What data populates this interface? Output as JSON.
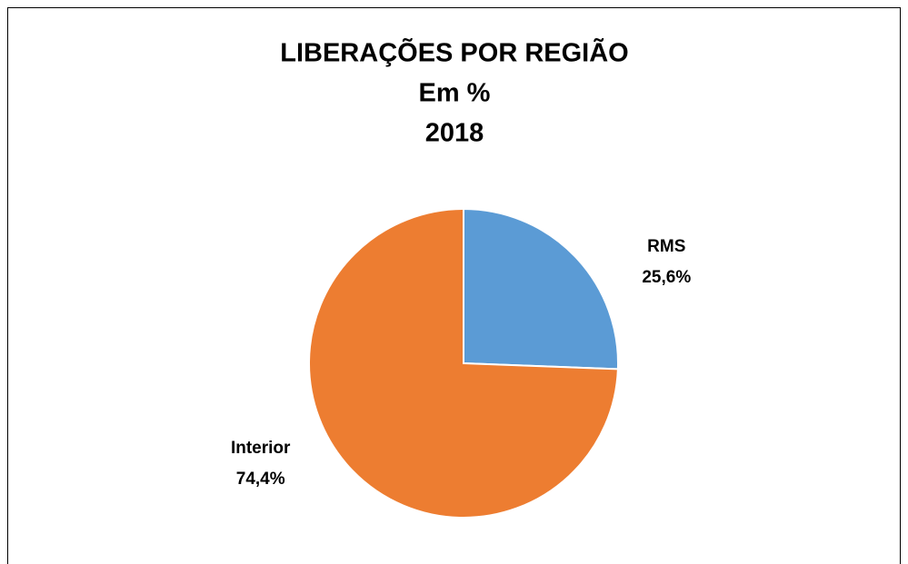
{
  "chart_data": {
    "type": "pie",
    "title_lines": [
      "LIBERAÇÕES POR REGIÃO",
      "Em %",
      "2018"
    ],
    "categories": [
      "RMS",
      "Interior"
    ],
    "values": [
      25.6,
      74.4
    ],
    "value_labels": [
      "25,6%",
      "74,4%"
    ],
    "colors": [
      "#5b9bd5",
      "#ed7d31"
    ]
  }
}
